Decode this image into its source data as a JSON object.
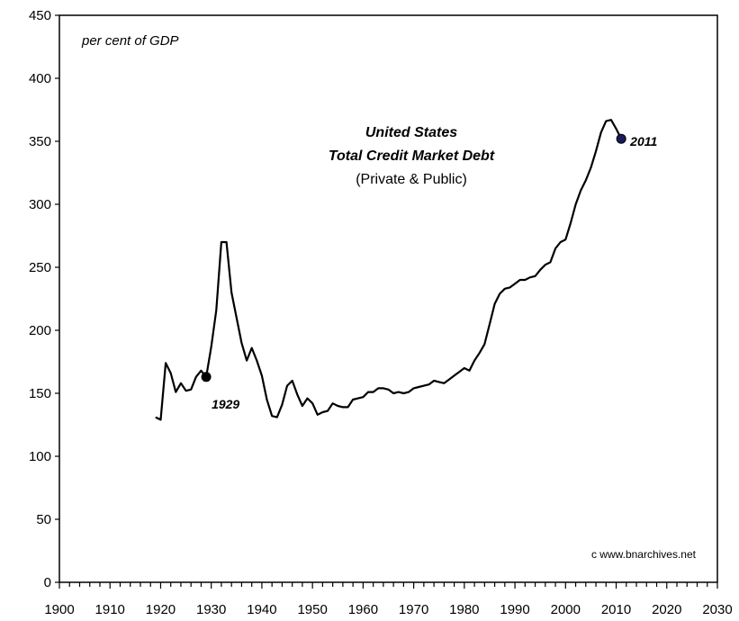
{
  "chart_data": {
    "type": "line",
    "title": "United States",
    "title_line2": "Total Credit Market Debt",
    "subtitle": "(Private & Public)",
    "ylabel": "per cent of GDP",
    "xlabel": "",
    "credit": "c  www.bnarchives.net",
    "xlim": [
      1900,
      2030
    ],
    "ylim": [
      0,
      450
    ],
    "x_ticks": [
      "1900",
      "1910",
      "1920",
      "1930",
      "1940",
      "1950",
      "1960",
      "1970",
      "1980",
      "1990",
      "2000",
      "2010",
      "2020",
      "2030"
    ],
    "y_ticks": [
      "0",
      "50",
      "100",
      "150",
      "200",
      "250",
      "300",
      "350",
      "400",
      "450"
    ],
    "grid": false,
    "series": [
      {
        "color": "#000000",
        "x": [
          1919,
          1920,
          1921,
          1922,
          1923,
          1924,
          1925,
          1926,
          1927,
          1928,
          1929,
          1930,
          1931,
          1932,
          1933,
          1934,
          1935,
          1936,
          1937,
          1938,
          1939,
          1940,
          1941,
          1942,
          1943,
          1944,
          1945,
          1946,
          1947,
          1948,
          1949,
          1950,
          1951,
          1952,
          1953,
          1954,
          1955,
          1956,
          1957,
          1958,
          1959,
          1960,
          1961,
          1962,
          1963,
          1964,
          1965,
          1966,
          1967,
          1968,
          1969,
          1970,
          1971,
          1972,
          1973,
          1974,
          1975,
          1976,
          1977,
          1978,
          1979,
          1980,
          1981,
          1982,
          1983,
          1984,
          1985,
          1986,
          1987,
          1988,
          1989,
          1990,
          1991,
          1992,
          1993,
          1994,
          1995,
          1996,
          1997,
          1998,
          1999,
          2000,
          2001,
          2002,
          2003,
          2004,
          2005,
          2006,
          2007,
          2008,
          2009,
          2010,
          2011
        ],
        "y": [
          131,
          129,
          174,
          166,
          151,
          158,
          152,
          153,
          163,
          168,
          163,
          187,
          216,
          270,
          270,
          230,
          210,
          190,
          176,
          186,
          176,
          164,
          145,
          132,
          131,
          141,
          156,
          160,
          149,
          140,
          146,
          142,
          133,
          135,
          136,
          142,
          140,
          139,
          139,
          145,
          146,
          147,
          151,
          151,
          154,
          154,
          153,
          150,
          151,
          150,
          151,
          154,
          155,
          156,
          157,
          160,
          159,
          158,
          161,
          164,
          167,
          170,
          168,
          176,
          182,
          189,
          205,
          221,
          229,
          233,
          234,
          237,
          240,
          240,
          242,
          243,
          248,
          252,
          254,
          265,
          270,
          272,
          285,
          300,
          311,
          319,
          329,
          342,
          357,
          366,
          367,
          360,
          352
        ]
      }
    ],
    "annotations": [
      {
        "label": "1929",
        "x": 1929,
        "y": 163,
        "marker_color": "#000000"
      },
      {
        "label": "2011",
        "x": 2011,
        "y": 352,
        "marker_color": "#1a1a5e"
      }
    ]
  }
}
